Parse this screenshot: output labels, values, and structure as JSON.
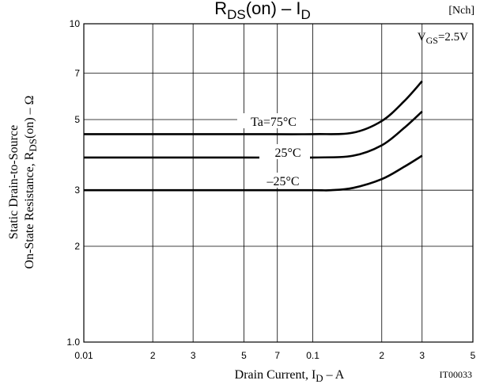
{
  "chart_data": {
    "type": "line",
    "title_main": "R",
    "title_main_sub": "DS",
    "title_rest": "(on)  –  I",
    "title_rest_sub": "D",
    "channel_tag": "[Nch]",
    "condition_main": "V",
    "condition_sub": "GS",
    "condition_value": "=2.5V",
    "ylabel_line1": "Static Drain-to-Source",
    "ylabel_line2_main": "On-State Resistance, R",
    "ylabel_line2_sub": "DS",
    "ylabel_line2_rest": "(on)  –  Ω",
    "xlabel_main": "Drain Current, I",
    "xlabel_sub": "D",
    "xlabel_rest": "  –  A",
    "figure_id": "IT00033",
    "x_scale": "log",
    "y_scale": "log",
    "xlim": [
      0.01,
      0.5
    ],
    "ylim": [
      1.0,
      10
    ],
    "grid": true,
    "x_ticks": [
      {
        "value": 0.01,
        "label": "0.01"
      },
      {
        "value": 0.02,
        "label": "2"
      },
      {
        "value": 0.03,
        "label": "3"
      },
      {
        "value": 0.05,
        "label": "5"
      },
      {
        "value": 0.07,
        "label": "7"
      },
      {
        "value": 0.1,
        "label": "0.1"
      },
      {
        "value": 0.2,
        "label": "2"
      },
      {
        "value": 0.3,
        "label": "3"
      },
      {
        "value": 0.5,
        "label": "5"
      }
    ],
    "y_ticks": [
      {
        "value": 1.0,
        "label": "1.0"
      },
      {
        "value": 2,
        "label": "2"
      },
      {
        "value": 3,
        "label": "3"
      },
      {
        "value": 5,
        "label": "5"
      },
      {
        "value": 7,
        "label": "7"
      },
      {
        "value": 10,
        "label": "10"
      }
    ],
    "series": [
      {
        "name": "Ta=75°C",
        "x": [
          0.01,
          0.02,
          0.05,
          0.1,
          0.15,
          0.2,
          0.25,
          0.3
        ],
        "y": [
          4.5,
          4.5,
          4.5,
          4.5,
          4.55,
          4.95,
          5.7,
          6.6
        ]
      },
      {
        "name": "25°C",
        "x": [
          0.01,
          0.02,
          0.05,
          0.1,
          0.15,
          0.2,
          0.25,
          0.3
        ],
        "y": [
          3.8,
          3.8,
          3.8,
          3.8,
          3.85,
          4.15,
          4.7,
          5.3
        ]
      },
      {
        "name": "–25°C",
        "x": [
          0.01,
          0.02,
          0.05,
          0.1,
          0.12,
          0.15,
          0.2,
          0.25,
          0.3
        ],
        "y": [
          3.0,
          3.0,
          3.0,
          3.0,
          3.0,
          3.05,
          3.25,
          3.55,
          3.85
        ]
      }
    ]
  }
}
